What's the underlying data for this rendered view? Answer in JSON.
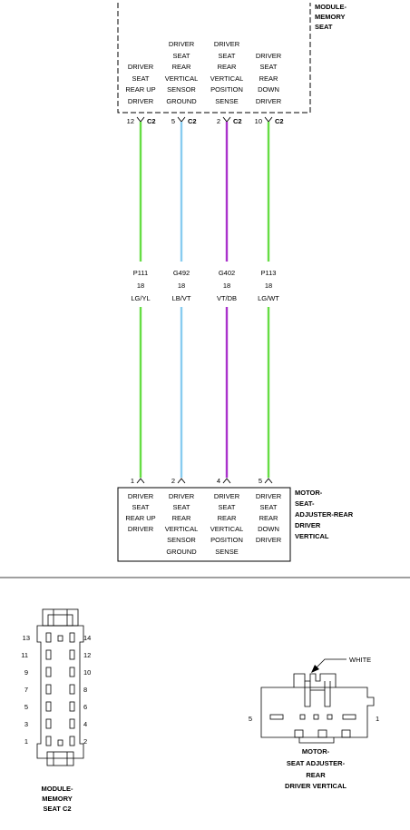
{
  "module": {
    "title": [
      "MODULE-",
      "MEMORY",
      "SEAT"
    ],
    "circuits": [
      {
        "lines": [
          "DRIVER",
          "SEAT",
          "REAR UP",
          "DRIVER"
        ],
        "pin": "12",
        "conn": "C2"
      },
      {
        "lines": [
          "DRIVER",
          "SEAT",
          "REAR",
          "VERTICAL",
          "SENSOR",
          "GROUND"
        ],
        "pin": "5",
        "conn": "C2"
      },
      {
        "lines": [
          "DRIVER",
          "SEAT",
          "REAR",
          "VERTICAL",
          "POSITION",
          "SENSE"
        ],
        "pin": "2",
        "conn": "C2"
      },
      {
        "lines": [
          "DRIVER",
          "SEAT",
          "REAR",
          "DOWN",
          "DRIVER"
        ],
        "pin": "10",
        "conn": "C2"
      }
    ]
  },
  "wires": [
    {
      "circuit": "P111",
      "gauge": "18",
      "color_code": "LG/YL",
      "color": "#66dd44"
    },
    {
      "circuit": "G492",
      "gauge": "18",
      "color_code": "LB/VT",
      "color": "#88ccf0"
    },
    {
      "circuit": "G402",
      "gauge": "18",
      "color_code": "VT/DB",
      "color": "#aa33cc"
    },
    {
      "circuit": "P113",
      "gauge": "18",
      "color_code": "LG/WT",
      "color": "#66dd44"
    }
  ],
  "motor": {
    "title": [
      "MOTOR-",
      "SEAT-",
      "ADJUSTER-REAR",
      "DRIVER",
      "VERTICAL"
    ],
    "circuits": [
      {
        "pin": "1",
        "lines": [
          "DRIVER",
          "SEAT",
          "REAR UP",
          "DRIVER"
        ]
      },
      {
        "pin": "2",
        "lines": [
          "DRIVER",
          "SEAT",
          "REAR",
          "VERTICAL",
          "SENSOR",
          "GROUND"
        ]
      },
      {
        "pin": "4",
        "lines": [
          "DRIVER",
          "SEAT",
          "REAR",
          "VERTICAL",
          "POSITION",
          "SENSE"
        ]
      },
      {
        "pin": "5",
        "lines": [
          "DRIVER",
          "SEAT",
          "REAR",
          "DOWN",
          "DRIVER"
        ]
      }
    ]
  },
  "connector_c2": {
    "label": [
      "MODULE-",
      "MEMORY",
      "SEAT C2"
    ],
    "left_pins": [
      "13",
      "11",
      "9",
      "7",
      "5",
      "3",
      "1"
    ],
    "right_pins": [
      "14",
      "12",
      "10",
      "8",
      "6",
      "4",
      "2"
    ]
  },
  "motor_connector": {
    "label": [
      "MOTOR-",
      "SEAT ADJUSTER-",
      "REAR",
      "DRIVER VERTICAL"
    ],
    "callout": "WHITE",
    "pin_left": "5",
    "pin_right": "1"
  }
}
